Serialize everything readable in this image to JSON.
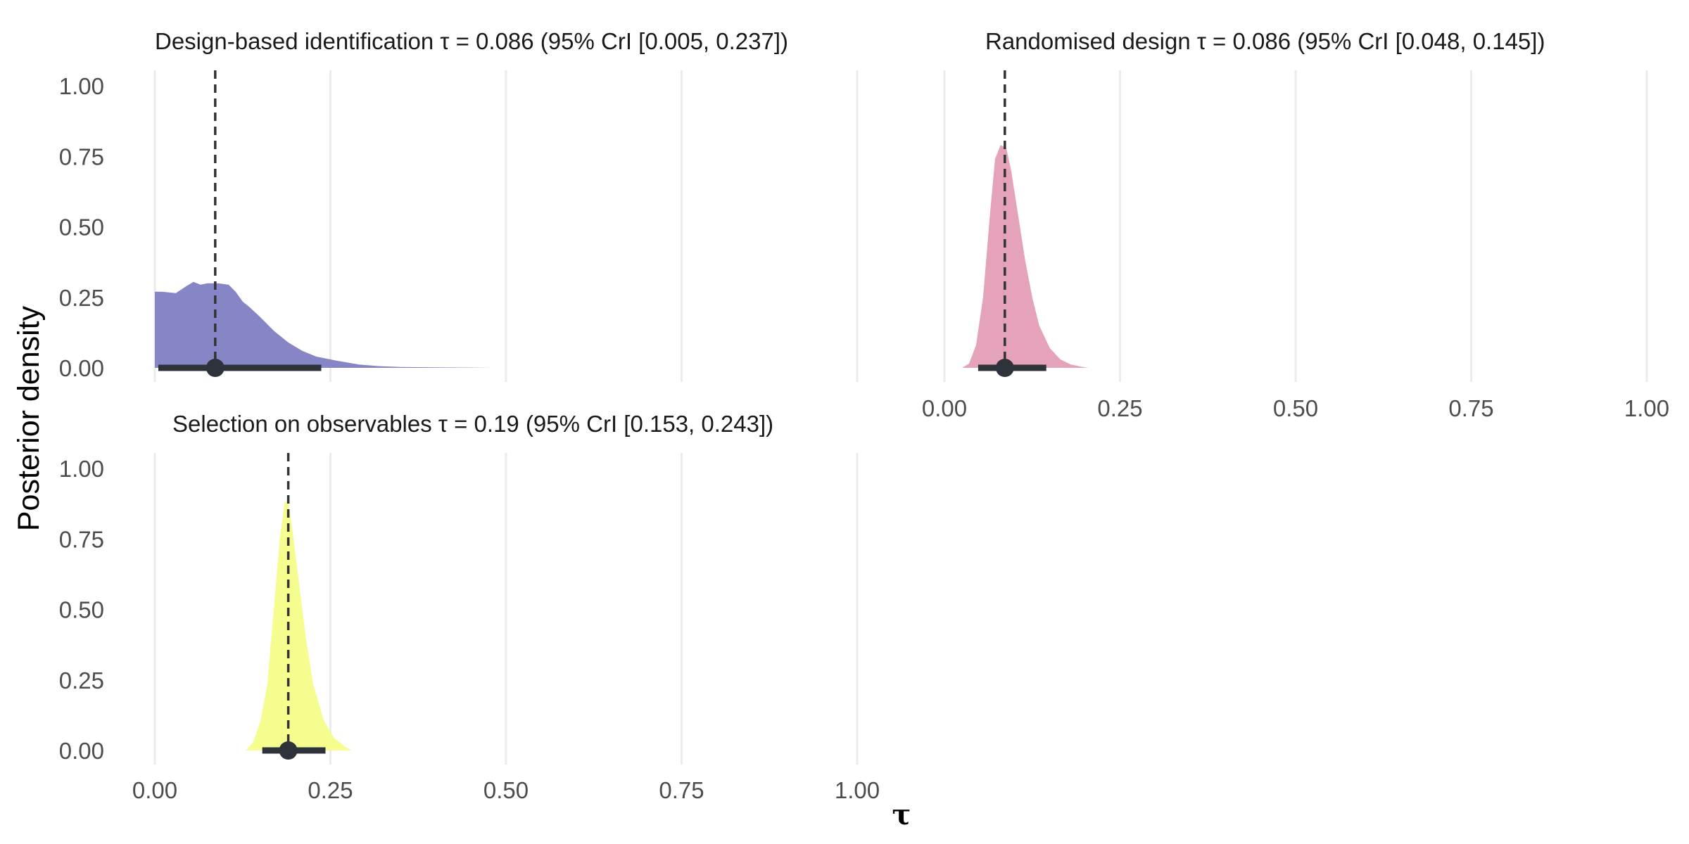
{
  "chart_data": {
    "type": "area",
    "xlabel": "τ",
    "ylabel": "Posterior density",
    "xlim": [
      0,
      1
    ],
    "ylim": [
      0,
      1
    ],
    "x_ticks": [
      "0.00",
      "0.25",
      "0.50",
      "0.75",
      "1.00"
    ],
    "y_ticks": [
      "0.00",
      "0.25",
      "0.50",
      "0.75",
      "1.00"
    ],
    "grid": "vertical major lines only",
    "panels": [
      {
        "title": "Design-based identification τ = 0.086 (95% CrI [0.005, 0.237])",
        "color": "#8686c6",
        "median": 0.086,
        "interval": [
          0.005,
          0.237
        ],
        "density": {
          "x": [
            0.0,
            0.01,
            0.03,
            0.045,
            0.055,
            0.065,
            0.075,
            0.09,
            0.105,
            0.115,
            0.125,
            0.135,
            0.15,
            0.17,
            0.19,
            0.21,
            0.23,
            0.26,
            0.29,
            0.32,
            0.35,
            0.4,
            0.45,
            0.48
          ],
          "y": [
            0.27,
            0.27,
            0.265,
            0.29,
            0.305,
            0.295,
            0.3,
            0.3,
            0.295,
            0.27,
            0.235,
            0.215,
            0.18,
            0.13,
            0.09,
            0.06,
            0.04,
            0.025,
            0.012,
            0.006,
            0.003,
            0.002,
            0.001,
            0.0
          ]
        }
      },
      {
        "title": "Randomised design τ = 0.086 (95% CrI [0.048, 0.145])",
        "color": "#e4a2bb",
        "median": 0.086,
        "interval": [
          0.048,
          0.145
        ],
        "density": {
          "x": [
            0.025,
            0.035,
            0.045,
            0.055,
            0.065,
            0.072,
            0.08,
            0.088,
            0.095,
            0.105,
            0.115,
            0.125,
            0.135,
            0.15,
            0.165,
            0.18,
            0.195,
            0.205
          ],
          "y": [
            0.0,
            0.015,
            0.08,
            0.25,
            0.55,
            0.74,
            0.79,
            0.78,
            0.7,
            0.54,
            0.38,
            0.25,
            0.15,
            0.07,
            0.03,
            0.012,
            0.004,
            0.0
          ]
        }
      },
      {
        "title": "Selection on observables τ = 0.19 (95% CrI [0.153, 0.243])",
        "color": "#f4fd8d",
        "median": 0.19,
        "interval": [
          0.153,
          0.243
        ],
        "density": {
          "x": [
            0.13,
            0.14,
            0.15,
            0.16,
            0.17,
            0.178,
            0.185,
            0.19,
            0.196,
            0.205,
            0.215,
            0.225,
            0.24,
            0.255,
            0.27,
            0.28
          ],
          "y": [
            0.0,
            0.03,
            0.1,
            0.23,
            0.52,
            0.75,
            0.88,
            0.88,
            0.78,
            0.6,
            0.4,
            0.24,
            0.11,
            0.045,
            0.015,
            0.0
          ]
        }
      }
    ]
  }
}
